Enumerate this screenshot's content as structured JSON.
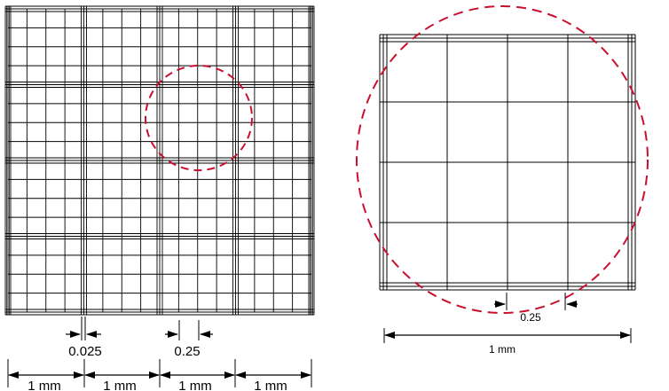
{
  "left_panel": {
    "fine_spacing_label": "0.025",
    "small_square_label": "0.25",
    "large_square_labels": [
      "1 mm",
      "1 mm",
      "1 mm",
      "1 mm"
    ]
  },
  "right_panel": {
    "small_square_label": "0.25",
    "scale_label": "1 mm"
  },
  "colors": {
    "grid_line": "#000000",
    "highlight_circle": "#c8102e"
  }
}
